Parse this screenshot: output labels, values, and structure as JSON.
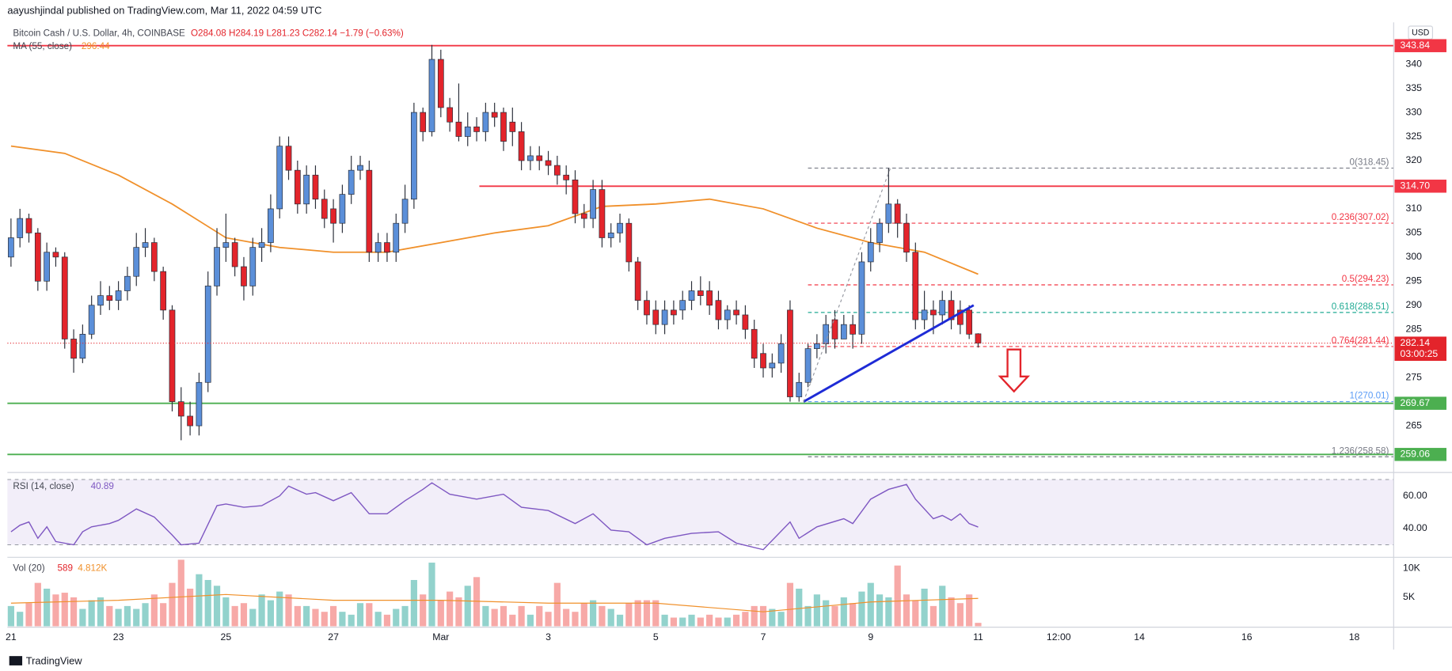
{
  "chart_data": {
    "type": "candlestick",
    "header": {
      "author_line": "aayushjindal published on TradingView.com, Mar 11, 2022 04:59 UTC",
      "symbol": "Bitcoin Cash / U.S. Dollar, 4h, COINBASE",
      "ohlc": "O284.08 H284.19 L281.23 C282.14 −1.79 (−0.63%)"
    },
    "currency": "USD",
    "brand": "TradingView",
    "xlim": [
      -0.4,
      154.4
    ],
    "xticks": [
      {
        "value": 0,
        "label": "21"
      },
      {
        "value": 12,
        "label": "23"
      },
      {
        "value": 24,
        "label": "25"
      },
      {
        "value": 36,
        "label": "27"
      },
      {
        "value": 48,
        "label": "Mar"
      },
      {
        "value": 60,
        "label": "3"
      },
      {
        "value": 72,
        "label": "5"
      },
      {
        "value": 84,
        "label": "7"
      },
      {
        "value": 96,
        "label": "9"
      },
      {
        "value": 108,
        "label": "11"
      },
      {
        "value": 117,
        "label": "12:00"
      },
      {
        "value": 126,
        "label": "14"
      },
      {
        "value": 138,
        "label": "16"
      },
      {
        "value": 150,
        "label": "18"
      }
    ],
    "ylim": [
      255.7,
      347.9
    ],
    "yticks": [
      340,
      335,
      330,
      325,
      320,
      315,
      310,
      305,
      300,
      295,
      290,
      285,
      280,
      275,
      270,
      265
    ],
    "grid": false,
    "up_color": "#5b8fd9",
    "down_color": "#e3242b",
    "open": [
      300,
      304,
      308,
      305,
      295,
      301,
      300,
      283,
      279,
      284,
      290,
      292,
      291,
      293,
      296,
      302,
      303,
      297,
      289,
      270,
      267,
      265,
      274,
      294,
      302,
      303,
      298,
      294,
      302,
      303,
      310,
      323,
      318,
      311,
      317,
      312,
      310,
      307,
      313,
      318,
      318,
      301,
      303,
      301,
      307,
      312,
      330,
      326,
      341,
      331,
      328,
      325,
      327,
      326,
      330,
      330,
      328,
      326,
      320,
      321,
      320,
      319,
      317,
      316,
      309,
      308,
      314,
      304,
      305,
      307,
      299,
      291,
      289,
      286,
      289,
      289,
      291,
      293,
      293,
      291,
      287,
      289,
      288,
      285,
      280,
      277,
      278,
      289,
      271,
      274,
      281,
      282,
      287,
      283,
      286,
      284,
      299,
      303,
      307,
      311,
      307,
      301,
      287,
      289,
      288,
      291,
      289,
      289,
      284.08
    ],
    "high": [
      308,
      310,
      309,
      306,
      303,
      302,
      301,
      285,
      286,
      292,
      295,
      294,
      295,
      298,
      305,
      306,
      304,
      298,
      290,
      273,
      270,
      276,
      297,
      306,
      309,
      304,
      300,
      304,
      306,
      313,
      325,
      325,
      320,
      319,
      319,
      314,
      312,
      315,
      321,
      321,
      320,
      305,
      305,
      309,
      315,
      332,
      331,
      344,
      343,
      333,
      336,
      330,
      329,
      332,
      332,
      331,
      331,
      328,
      323,
      323,
      322,
      321,
      319,
      318,
      311,
      316,
      316,
      307,
      309,
      308,
      300,
      293,
      291,
      291,
      291,
      293,
      295,
      296,
      295,
      293,
      290,
      291,
      290,
      287,
      282,
      280,
      284,
      291,
      276,
      282,
      284,
      288,
      289,
      288,
      288,
      301,
      306,
      308,
      318.45,
      312,
      309,
      303,
      293,
      291,
      293,
      293,
      291,
      290,
      284.19
    ],
    "low": [
      298,
      302,
      303,
      293,
      293,
      298,
      281,
      276,
      278,
      283,
      288,
      289,
      289,
      291,
      294,
      300,
      295,
      287,
      268,
      262,
      263,
      263,
      272,
      292,
      299,
      296,
      291,
      292,
      299,
      301,
      308,
      316,
      309,
      309,
      310,
      306,
      303,
      305,
      311,
      316,
      299,
      299,
      299,
      299,
      305,
      310,
      324,
      325,
      329,
      326,
      324,
      323,
      324,
      324,
      327,
      322,
      323,
      318,
      318,
      318,
      317,
      315,
      313,
      307,
      306,
      306,
      302,
      302,
      303,
      297,
      289,
      286,
      284,
      284,
      286,
      287,
      289,
      290,
      288,
      285,
      285,
      286,
      283,
      277,
      275,
      275,
      276,
      270.01,
      270,
      273,
      279,
      280,
      281,
      283,
      281,
      282,
      297,
      301,
      305,
      304,
      299,
      285,
      285,
      284,
      286,
      285,
      284,
      283,
      281.23
    ],
    "close": [
      304,
      308,
      305,
      295,
      301,
      300,
      283,
      279,
      284,
      290,
      292,
      291,
      293,
      296,
      302,
      303,
      297,
      289,
      270,
      267,
      265,
      274,
      294,
      302,
      303,
      298,
      294,
      302,
      303,
      310,
      323,
      318,
      311,
      317,
      312,
      308,
      307,
      313,
      318,
      319,
      301,
      303,
      301,
      307,
      312,
      330,
      326,
      341,
      331,
      328,
      325,
      327,
      326,
      330,
      329,
      324,
      326,
      320,
      321,
      320,
      319,
      317,
      316,
      309,
      308,
      314,
      304,
      305,
      307,
      299,
      291,
      288,
      286,
      289,
      288,
      291,
      293,
      292,
      290,
      287,
      289,
      288,
      285,
      279,
      277,
      278,
      282,
      271,
      274,
      281,
      282,
      286,
      283,
      286,
      284,
      299,
      303,
      307,
      311,
      307,
      301,
      287,
      289,
      288,
      291,
      287,
      286,
      284,
      282.14
    ],
    "countdown": "03:00:25",
    "ma": {
      "name": "MA (55, close)",
      "color": "#f0902a",
      "x": [
        0,
        6,
        12,
        18,
        24,
        30,
        36,
        42,
        48,
        54,
        60,
        66,
        72,
        78,
        84,
        90,
        96,
        102,
        108
      ],
      "values": [
        323,
        321.5,
        317,
        311,
        304,
        302,
        301,
        301,
        303,
        305,
        306.5,
        310.5,
        311,
        312,
        310,
        306,
        303,
        301,
        296.44
      ]
    },
    "levels": [
      {
        "value": 343.84,
        "color": "#f23645"
      },
      {
        "value": 314.7,
        "label": "314.70",
        "color": "#f23645",
        "x_start": 52.3
      },
      {
        "value": 269.67,
        "color": "#4caf50"
      },
      {
        "value": 259.06,
        "color": "#4caf50"
      }
    ],
    "fib": {
      "x_start": 89,
      "levels": [
        {
          "value": 318.45,
          "label": "0(318.45)",
          "color": "#787b86"
        },
        {
          "value": 307.02,
          "label": "0.236(307.02)",
          "color": "#f23645"
        },
        {
          "value": 294.23,
          "label": "0.5(294.23)",
          "color": "#f23645"
        },
        {
          "value": 288.51,
          "label": "0.618(288.51)",
          "color": "#22ab94"
        },
        {
          "value": 281.44,
          "label": "0.764(281.44)",
          "color": "#f23645"
        },
        {
          "value": 270.01,
          "label": "1(270.01)",
          "color": "#5b9cf6"
        },
        {
          "value": 258.58,
          "label": "1.236(258.58)",
          "color": "#787b86"
        }
      ]
    },
    "trendline": {
      "x": [
        88.5,
        107.5
      ],
      "y": [
        270,
        290
      ],
      "color": "#1e2bd6"
    },
    "projection": {
      "x": [
        88.5,
        98.2
      ],
      "y": [
        270,
        318.45
      ],
      "color": "#9598a1"
    },
    "rsi": {
      "name": "RSI (14, close)",
      "color": "#7e57c2",
      "ylim": [
        22.9,
        72.6
      ],
      "band": [
        30,
        70
      ],
      "yticks": [
        {
          "value": 60,
          "label": "60.00"
        },
        {
          "value": 40,
          "label": "40.00"
        }
      ],
      "x": [
        0,
        1,
        2,
        3,
        4,
        5,
        7,
        8,
        9,
        11,
        12,
        14,
        16,
        18,
        19,
        21,
        23,
        24,
        26,
        28,
        30,
        31,
        33,
        34,
        36,
        38,
        40,
        42,
        44,
        46,
        47,
        49,
        52,
        55,
        57,
        60,
        63,
        65,
        67,
        69,
        71,
        73,
        76,
        79,
        81,
        84,
        87,
        88,
        90,
        93,
        94,
        96,
        98,
        100,
        101,
        103,
        104,
        105,
        106,
        107,
        108
      ],
      "values": [
        38,
        42,
        44,
        34,
        41,
        32,
        30,
        38,
        41,
        43,
        45,
        52,
        47,
        36,
        30,
        31,
        54,
        55,
        53,
        54,
        60,
        66,
        61,
        62,
        57,
        62,
        49,
        49,
        57,
        64,
        68,
        61,
        58,
        61,
        53,
        51,
        43,
        49,
        39,
        38,
        30,
        34,
        37,
        38,
        31,
        27,
        44,
        34,
        41,
        46,
        43,
        58,
        64,
        67,
        58,
        46,
        48,
        45,
        49,
        43,
        40.89
      ]
    },
    "volume": {
      "name": "Vol (20)",
      "up_color": "rgba(38,166,154,0.5)",
      "down_color": "rgba(239,83,80,0.5)",
      "ylim": [
        0,
        11600
      ],
      "yticks": [
        {
          "value": 10000,
          "label": "10K"
        },
        {
          "value": 5000,
          "label": "5K"
        }
      ],
      "values": [
        3500,
        2500,
        4000,
        7500,
        6500,
        5500,
        5800,
        5000,
        3000,
        4500,
        5000,
        3500,
        3000,
        3500,
        3000,
        4000,
        5500,
        4000,
        7500,
        11500,
        6500,
        9000,
        8000,
        7000,
        5000,
        3500,
        4000,
        3000,
        5500,
        4500,
        6000,
        5500,
        3500,
        3500,
        3000,
        2500,
        3500,
        2500,
        2000,
        4000,
        4000,
        2500,
        2000,
        3000,
        3500,
        8000,
        5500,
        11000,
        4500,
        6000,
        5000,
        7000,
        8500,
        3500,
        3000,
        3500,
        2000,
        3500,
        2000,
        3500,
        2500,
        7500,
        3000,
        2500,
        4000,
        4500,
        3500,
        3000,
        2000,
        4000,
        4500,
        4500,
        4500,
        2000,
        1500,
        1500,
        2000,
        1500,
        2000,
        1500,
        1500,
        2000,
        2500,
        3500,
        3500,
        3000,
        2500,
        7500,
        6500,
        3500,
        5500,
        4500,
        3500,
        5000,
        4000,
        6000,
        7500,
        5500,
        5000,
        10500,
        5500,
        4500,
        6500,
        3500,
        7000,
        5000,
        4000,
        5500,
        589
      ],
      "ma": {
        "color": "#f0902a",
        "x": [
          0,
          12,
          24,
          36,
          48,
          60,
          72,
          84,
          96,
          108
        ],
        "values": [
          4000,
          4500,
          5500,
          4500,
          4500,
          4000,
          4000,
          2500,
          4200,
          4812
        ],
        "value_label": "4.812K"
      }
    }
  }
}
